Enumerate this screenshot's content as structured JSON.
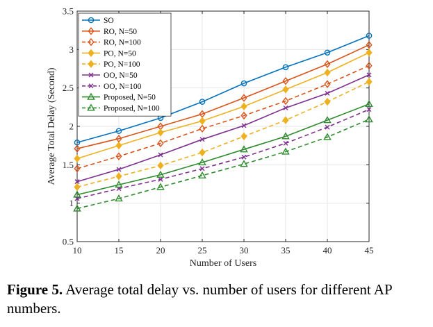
{
  "chart_data": {
    "type": "line",
    "title": "",
    "xlabel": "Number of Users",
    "ylabel": "Average Total Delay (Second)",
    "x": [
      10,
      15,
      20,
      25,
      30,
      35,
      40,
      45
    ],
    "xlim": [
      10,
      45
    ],
    "ylim": [
      0.5,
      3.5
    ],
    "xticks": [
      "10",
      "15",
      "20",
      "25",
      "30",
      "35",
      "40",
      "45"
    ],
    "yticks": [
      "0.5",
      "1",
      "1.5",
      "2",
      "2.5",
      "3",
      "3.5"
    ],
    "grid": true,
    "legend_position": "top-left",
    "series": [
      {
        "name": "SO",
        "values": [
          1.79,
          1.94,
          2.11,
          2.32,
          2.56,
          2.77,
          2.96,
          3.18
        ],
        "color": "#0072BD",
        "dash": "solid",
        "marker": "circle"
      },
      {
        "name": "RO, N=50",
        "values": [
          1.71,
          1.84,
          2.0,
          2.16,
          2.37,
          2.59,
          2.81,
          3.06
        ],
        "color": "#D95319",
        "dash": "solid",
        "marker": "diamond"
      },
      {
        "name": "RO, N=100",
        "values": [
          1.45,
          1.61,
          1.78,
          1.97,
          2.14,
          2.33,
          2.55,
          2.79
        ],
        "color": "#D95319",
        "dash": "dashed",
        "marker": "diamond"
      },
      {
        "name": "PO, N=50",
        "values": [
          1.58,
          1.75,
          1.92,
          2.07,
          2.26,
          2.48,
          2.7,
          2.96
        ],
        "color": "#EDB120",
        "dash": "solid",
        "marker": "diamond-filled"
      },
      {
        "name": "PO, N=100",
        "values": [
          1.21,
          1.35,
          1.49,
          1.66,
          1.87,
          2.08,
          2.32,
          2.58
        ],
        "color": "#EDB120",
        "dash": "dashed",
        "marker": "diamond-filled"
      },
      {
        "name": "OO, N=50",
        "values": [
          1.28,
          1.44,
          1.63,
          1.83,
          2.01,
          2.24,
          2.43,
          2.67
        ],
        "color": "#7E2F8E",
        "dash": "solid",
        "marker": "x"
      },
      {
        "name": "OO, N=100",
        "values": [
          1.06,
          1.19,
          1.31,
          1.45,
          1.6,
          1.78,
          1.99,
          2.22
        ],
        "color": "#7E2F8E",
        "dash": "dashed",
        "marker": "x"
      },
      {
        "name": "Proposed, N=50",
        "values": [
          1.11,
          1.24,
          1.37,
          1.53,
          1.7,
          1.87,
          2.08,
          2.29
        ],
        "color": "#2E8B2E",
        "dash": "solid",
        "marker": "triangle"
      },
      {
        "name": "Proposed, N=100",
        "values": [
          0.93,
          1.06,
          1.21,
          1.36,
          1.51,
          1.67,
          1.86,
          2.09
        ],
        "color": "#2E8B2E",
        "dash": "dashed",
        "marker": "triangle"
      }
    ]
  },
  "caption": {
    "label": "Figure 5.",
    "text": " Average total delay vs. number of users for different AP numbers."
  }
}
